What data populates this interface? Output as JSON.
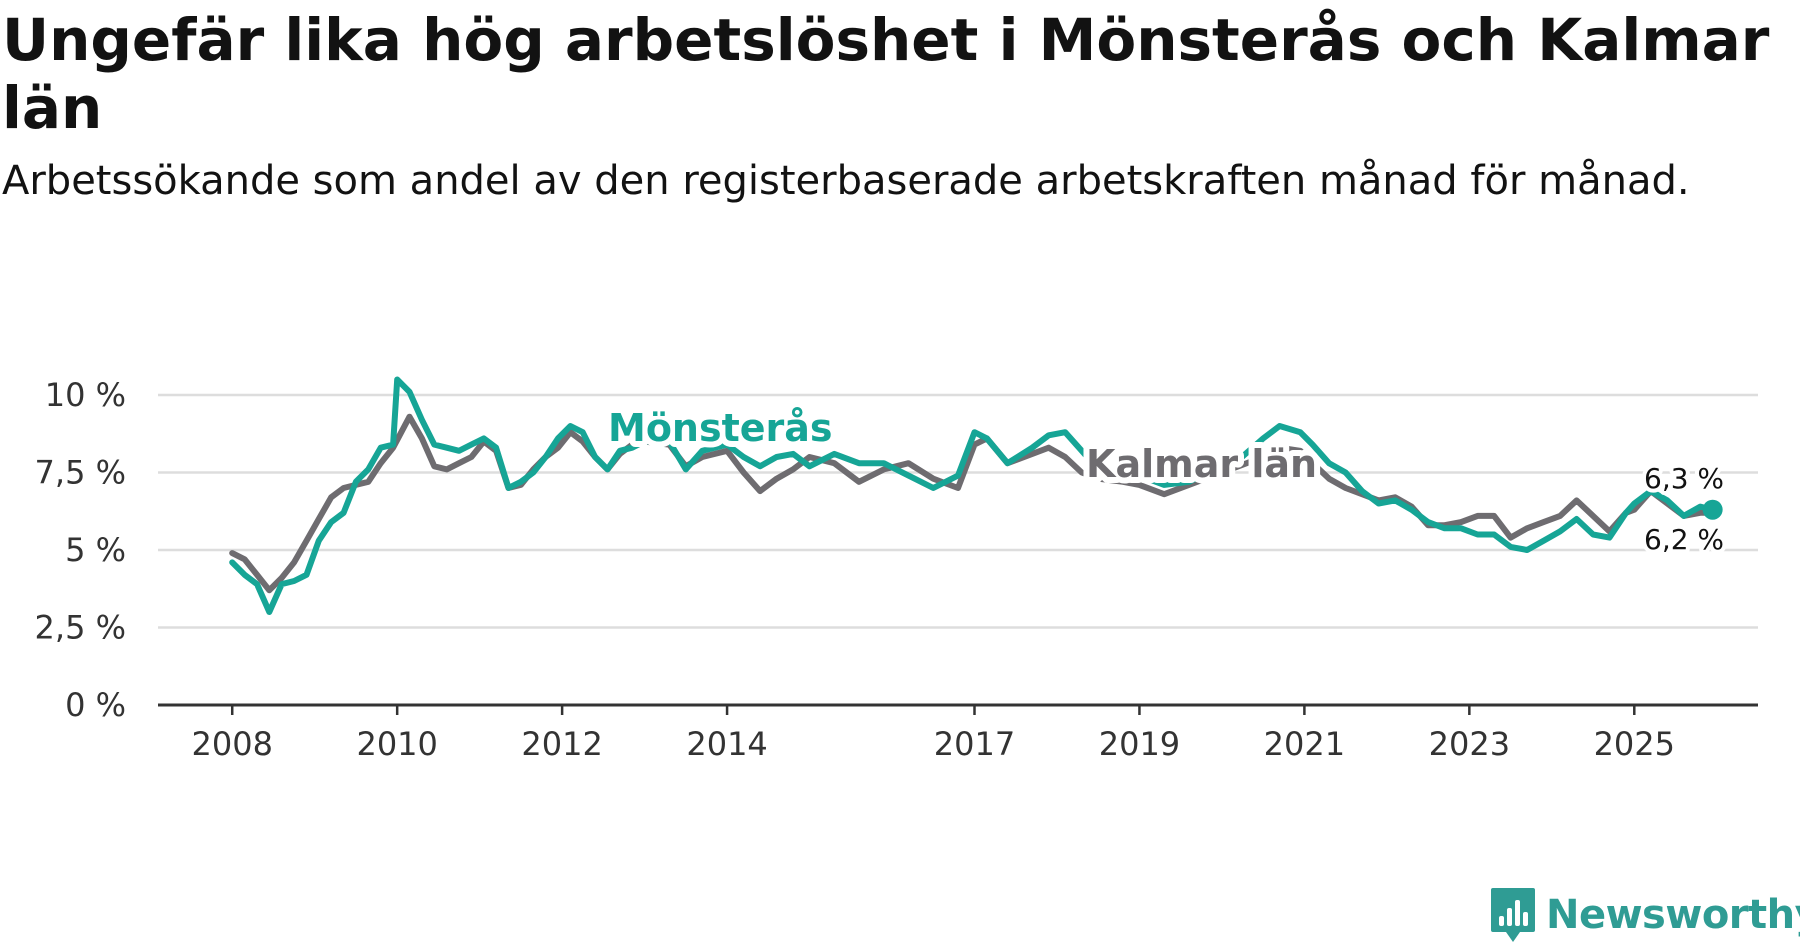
{
  "title": "Ungefär lika hög arbetslöshet i Mönsterås och Kalmar län",
  "subtitle": "Arbetssökande som andel av den registerbaserade arbetskraften månad för månad.",
  "logo": {
    "text": "Newsworthy"
  },
  "colors": {
    "monsteras": "#16a596",
    "kalmar": "#6e6c70",
    "grid": "#dddddd",
    "axis": "#333333"
  },
  "chart_data": {
    "type": "line",
    "title": "Ungefär lika hög arbetslöshet i Mönsterås och Kalmar län",
    "subtitle": "Arbetssökande som andel av den registerbaserade arbetskraften månad för månad.",
    "xlabel": "",
    "ylabel": "",
    "xlim": [
      2007.1,
      2026.5
    ],
    "ylim": [
      0,
      10
    ],
    "grid": true,
    "x_ticks": [
      2008,
      2010,
      2012,
      2014,
      2017,
      2019,
      2021,
      2023,
      2025
    ],
    "x_tick_labels": [
      "2008",
      "2010",
      "2012",
      "2014",
      "2017",
      "2019",
      "2021",
      "2023",
      "2025"
    ],
    "y_ticks": [
      0,
      2.5,
      5,
      7.5,
      10
    ],
    "y_tick_labels": [
      "0 %",
      "2,5 %",
      "5 %",
      "7,5 %",
      "10 %"
    ],
    "end_labels": {
      "monsteras": "6,3 %",
      "kalmar": "6,2 %"
    },
    "series": [
      {
        "name": "Mönsterås",
        "key": "monsteras",
        "label": "Mönsterås",
        "points": [
          [
            2008.0,
            4.6
          ],
          [
            2008.15,
            4.2
          ],
          [
            2008.3,
            3.9
          ],
          [
            2008.45,
            3.0
          ],
          [
            2008.6,
            3.9
          ],
          [
            2008.75,
            4.0
          ],
          [
            2008.9,
            4.2
          ],
          [
            2009.05,
            5.3
          ],
          [
            2009.2,
            5.9
          ],
          [
            2009.35,
            6.2
          ],
          [
            2009.5,
            7.2
          ],
          [
            2009.65,
            7.6
          ],
          [
            2009.8,
            8.3
          ],
          [
            2009.95,
            8.4
          ],
          [
            2010.0,
            10.5
          ],
          [
            2010.15,
            10.1
          ],
          [
            2010.3,
            9.2
          ],
          [
            2010.45,
            8.4
          ],
          [
            2010.6,
            8.3
          ],
          [
            2010.75,
            8.2
          ],
          [
            2010.9,
            8.4
          ],
          [
            2011.05,
            8.6
          ],
          [
            2011.2,
            8.3
          ],
          [
            2011.35,
            7.0
          ],
          [
            2011.5,
            7.2
          ],
          [
            2011.65,
            7.5
          ],
          [
            2011.8,
            8.0
          ],
          [
            2011.95,
            8.6
          ],
          [
            2012.1,
            9.0
          ],
          [
            2012.25,
            8.8
          ],
          [
            2012.4,
            8.0
          ],
          [
            2012.55,
            7.6
          ],
          [
            2012.7,
            8.2
          ],
          [
            2012.85,
            8.3
          ],
          [
            2013.0,
            8.5
          ],
          [
            2013.3,
            8.5
          ],
          [
            2013.5,
            7.6
          ],
          [
            2013.7,
            8.2
          ],
          [
            2014.0,
            8.4
          ],
          [
            2014.2,
            8.0
          ],
          [
            2014.4,
            7.7
          ],
          [
            2014.6,
            8.0
          ],
          [
            2014.8,
            8.1
          ],
          [
            2015.0,
            7.7
          ],
          [
            2015.3,
            8.1
          ],
          [
            2015.6,
            7.8
          ],
          [
            2015.9,
            7.8
          ],
          [
            2016.2,
            7.4
          ],
          [
            2016.5,
            7.0
          ],
          [
            2016.8,
            7.4
          ],
          [
            2017.0,
            8.8
          ],
          [
            2017.15,
            8.6
          ],
          [
            2017.4,
            7.8
          ],
          [
            2017.7,
            8.3
          ],
          [
            2017.9,
            8.7
          ],
          [
            2018.1,
            8.8
          ],
          [
            2018.3,
            8.2
          ],
          [
            2018.5,
            7.6
          ],
          [
            2018.8,
            7.5
          ],
          [
            2019.0,
            7.4
          ],
          [
            2019.3,
            7.1
          ],
          [
            2019.6,
            7.2
          ],
          [
            2019.9,
            7.6
          ],
          [
            2020.2,
            7.9
          ],
          [
            2020.5,
            8.6
          ],
          [
            2020.7,
            9.0
          ],
          [
            2020.95,
            8.8
          ],
          [
            2021.1,
            8.4
          ],
          [
            2021.3,
            7.8
          ],
          [
            2021.5,
            7.5
          ],
          [
            2021.7,
            6.9
          ],
          [
            2021.9,
            6.5
          ],
          [
            2022.1,
            6.6
          ],
          [
            2022.3,
            6.3
          ],
          [
            2022.5,
            5.9
          ],
          [
            2022.7,
            5.7
          ],
          [
            2022.9,
            5.7
          ],
          [
            2023.1,
            5.5
          ],
          [
            2023.3,
            5.5
          ],
          [
            2023.5,
            5.1
          ],
          [
            2023.7,
            5.0
          ],
          [
            2023.9,
            5.3
          ],
          [
            2024.1,
            5.6
          ],
          [
            2024.3,
            6.0
          ],
          [
            2024.5,
            5.5
          ],
          [
            2024.7,
            5.4
          ],
          [
            2024.9,
            6.2
          ],
          [
            2025.0,
            6.5
          ],
          [
            2025.2,
            6.9
          ],
          [
            2025.4,
            6.6
          ],
          [
            2025.6,
            6.1
          ],
          [
            2025.8,
            6.4
          ],
          [
            2025.95,
            6.3
          ]
        ]
      },
      {
        "name": "Kalmar län",
        "key": "kalmar",
        "label": "Kalmar län",
        "points": [
          [
            2008.0,
            4.9
          ],
          [
            2008.15,
            4.7
          ],
          [
            2008.3,
            4.2
          ],
          [
            2008.45,
            3.7
          ],
          [
            2008.6,
            4.1
          ],
          [
            2008.75,
            4.6
          ],
          [
            2008.9,
            5.3
          ],
          [
            2009.05,
            6.0
          ],
          [
            2009.2,
            6.7
          ],
          [
            2009.35,
            7.0
          ],
          [
            2009.5,
            7.1
          ],
          [
            2009.65,
            7.2
          ],
          [
            2009.8,
            7.8
          ],
          [
            2009.95,
            8.3
          ],
          [
            2010.05,
            8.8
          ],
          [
            2010.15,
            9.3
          ],
          [
            2010.3,
            8.6
          ],
          [
            2010.45,
            7.7
          ],
          [
            2010.6,
            7.6
          ],
          [
            2010.75,
            7.8
          ],
          [
            2010.9,
            8.0
          ],
          [
            2011.05,
            8.5
          ],
          [
            2011.2,
            8.2
          ],
          [
            2011.35,
            7.0
          ],
          [
            2011.5,
            7.1
          ],
          [
            2011.65,
            7.6
          ],
          [
            2011.8,
            8.0
          ],
          [
            2011.95,
            8.3
          ],
          [
            2012.1,
            8.8
          ],
          [
            2012.25,
            8.5
          ],
          [
            2012.4,
            8.0
          ],
          [
            2012.55,
            7.6
          ],
          [
            2012.7,
            8.1
          ],
          [
            2012.85,
            8.4
          ],
          [
            2013.0,
            8.5
          ],
          [
            2013.3,
            8.4
          ],
          [
            2013.5,
            7.7
          ],
          [
            2013.7,
            8.0
          ],
          [
            2014.0,
            8.2
          ],
          [
            2014.2,
            7.5
          ],
          [
            2014.4,
            6.9
          ],
          [
            2014.6,
            7.3
          ],
          [
            2014.8,
            7.6
          ],
          [
            2015.0,
            8.0
          ],
          [
            2015.3,
            7.8
          ],
          [
            2015.6,
            7.2
          ],
          [
            2015.9,
            7.6
          ],
          [
            2016.2,
            7.8
          ],
          [
            2016.5,
            7.3
          ],
          [
            2016.8,
            7.0
          ],
          [
            2017.0,
            8.4
          ],
          [
            2017.15,
            8.6
          ],
          [
            2017.4,
            7.8
          ],
          [
            2017.7,
            8.1
          ],
          [
            2017.9,
            8.3
          ],
          [
            2018.1,
            8.0
          ],
          [
            2018.3,
            7.5
          ],
          [
            2018.5,
            7.3
          ],
          [
            2018.8,
            7.2
          ],
          [
            2019.0,
            7.1
          ],
          [
            2019.3,
            6.8
          ],
          [
            2019.6,
            7.1
          ],
          [
            2019.9,
            7.4
          ],
          [
            2020.2,
            7.7
          ],
          [
            2020.5,
            8.0
          ],
          [
            2020.7,
            8.3
          ],
          [
            2020.95,
            8.2
          ],
          [
            2021.1,
            7.8
          ],
          [
            2021.3,
            7.3
          ],
          [
            2021.5,
            7.0
          ],
          [
            2021.7,
            6.8
          ],
          [
            2021.9,
            6.6
          ],
          [
            2022.1,
            6.7
          ],
          [
            2022.3,
            6.4
          ],
          [
            2022.5,
            5.8
          ],
          [
            2022.7,
            5.8
          ],
          [
            2022.9,
            5.9
          ],
          [
            2023.1,
            6.1
          ],
          [
            2023.3,
            6.1
          ],
          [
            2023.5,
            5.4
          ],
          [
            2023.7,
            5.7
          ],
          [
            2023.9,
            5.9
          ],
          [
            2024.1,
            6.1
          ],
          [
            2024.3,
            6.6
          ],
          [
            2024.5,
            6.1
          ],
          [
            2024.7,
            5.6
          ],
          [
            2024.9,
            6.2
          ],
          [
            2025.0,
            6.3
          ],
          [
            2025.2,
            6.9
          ],
          [
            2025.4,
            6.5
          ],
          [
            2025.6,
            6.1
          ],
          [
            2025.8,
            6.2
          ],
          [
            2025.95,
            6.2
          ]
        ]
      }
    ]
  }
}
